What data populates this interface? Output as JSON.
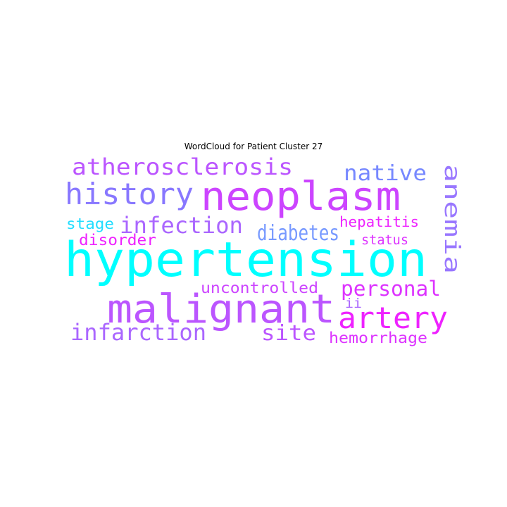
{
  "title": "WordCloud for Patient Cluster 27",
  "words": [
    {
      "text": "hypertension",
      "color": "#00ffff",
      "weight": 1.0
    },
    {
      "text": "neoplasm",
      "color": "#cc44ff",
      "weight": 0.82
    },
    {
      "text": "malignant",
      "color": "#bb55ff",
      "weight": 0.8
    },
    {
      "text": "history",
      "color": "#8877ff",
      "weight": 0.62
    },
    {
      "text": "artery",
      "color": "#ee22ff",
      "weight": 0.58
    },
    {
      "text": "atherosclerosis",
      "color": "#bb55ff",
      "weight": 0.5
    },
    {
      "text": "infection",
      "color": "#aa66ff",
      "weight": 0.48
    },
    {
      "text": "infarction",
      "color": "#aa66ff",
      "weight": 0.48
    },
    {
      "text": "native",
      "color": "#7788ff",
      "weight": 0.46
    },
    {
      "text": "diabetes",
      "color": "#9977ff",
      "weight": 0.46
    },
    {
      "text": "anemia",
      "color": "#7799ff",
      "weight": 0.45
    },
    {
      "text": "personal",
      "color": "#dd33ff",
      "weight": 0.44
    },
    {
      "text": "site",
      "color": "#bb55ff",
      "weight": 0.44
    },
    {
      "text": "uncontrolled",
      "color": "#cc44ff",
      "weight": 0.32
    },
    {
      "text": "hemorrhage",
      "color": "#dd33ff",
      "weight": 0.32
    },
    {
      "text": "stage",
      "color": "#22ddff",
      "weight": 0.3
    },
    {
      "text": "disorder",
      "color": "#ee22ff",
      "weight": 0.3
    },
    {
      "text": "hepatitis",
      "color": "#ee22ff",
      "weight": 0.28
    },
    {
      "text": "status",
      "color": "#dd33ff",
      "weight": 0.27
    },
    {
      "text": "ii",
      "color": "#aa66ff",
      "weight": 0.27
    }
  ]
}
